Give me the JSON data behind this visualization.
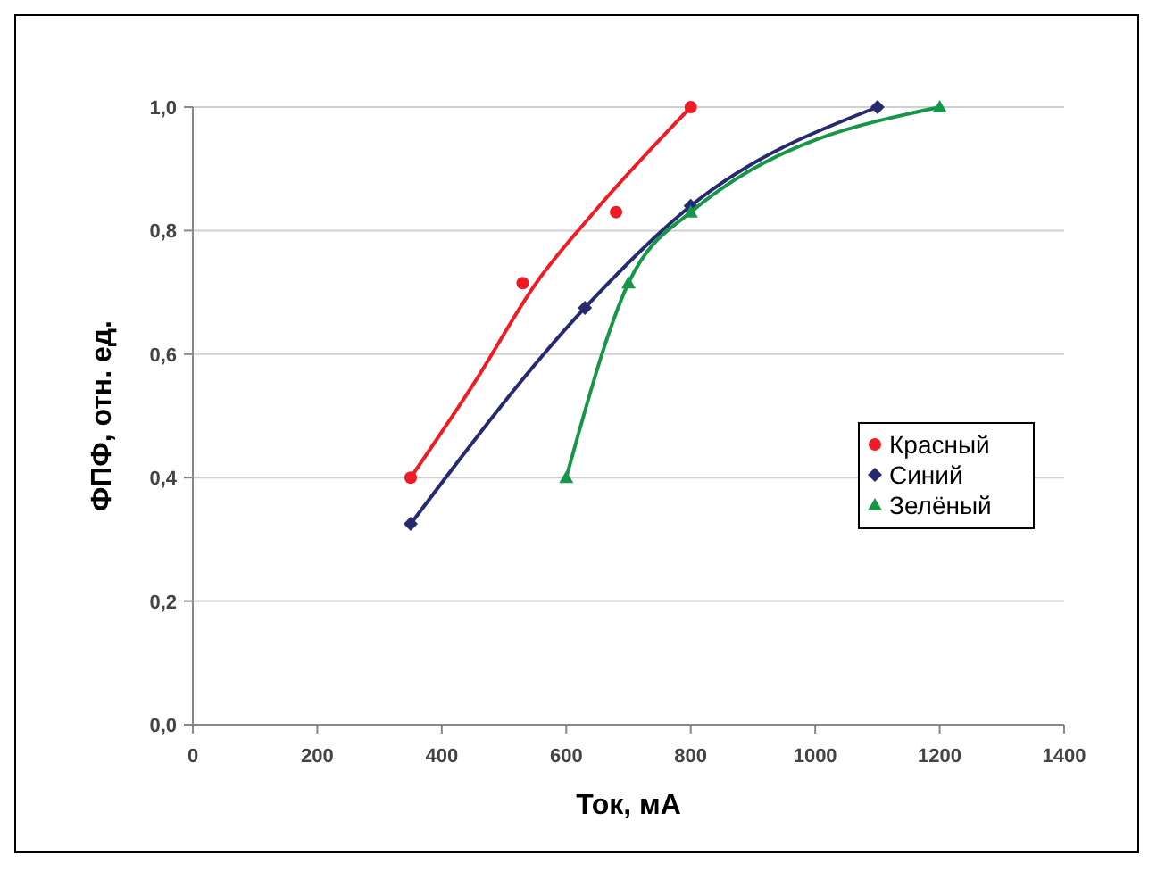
{
  "chart_data": {
    "type": "scatter",
    "xlabel": "Ток, мА",
    "ylabel": "ФПФ, отн. ед.",
    "xlim": [
      0,
      1400
    ],
    "ylim": [
      0,
      1
    ],
    "xticks": [
      0,
      200,
      400,
      600,
      800,
      1000,
      1200,
      1400
    ],
    "yticks": [
      {
        "value": 0,
        "label": "0,0"
      },
      {
        "value": 0.2,
        "label": "0,2"
      },
      {
        "value": 0.4,
        "label": "0,4"
      },
      {
        "value": 0.6,
        "label": "0,6"
      },
      {
        "value": 0.8,
        "label": "0,8"
      },
      {
        "value": 1,
        "label": "1,0"
      }
    ],
    "grid": "y",
    "legend": "right",
    "series": [
      {
        "name": "Красный",
        "marker": "circle",
        "color": "#ee1c24",
        "x": [
          350,
          530,
          680,
          800
        ],
        "values": [
          0.4,
          0.715,
          0.83,
          1.0
        ]
      },
      {
        "type": "line",
        "marker": "none",
        "color": "#ee1c24",
        "x": [
          350,
          450,
          553,
          643,
          800
        ],
        "values": [
          0.4,
          0.55,
          0.717,
          0.828,
          1.0
        ]
      },
      {
        "name": "Синий",
        "type": "line",
        "marker": "diamond",
        "color": "#262a6e",
        "x": [
          350,
          630,
          800,
          1100
        ],
        "values": [
          0.325,
          0.675,
          0.84,
          1.0
        ]
      },
      {
        "name": "Зелёный",
        "type": "line",
        "marker": "triangle",
        "color": "#17964a",
        "x": [
          600,
          700,
          800,
          1200
        ],
        "values": [
          0.4,
          0.715,
          0.83,
          1.0
        ]
      }
    ]
  }
}
